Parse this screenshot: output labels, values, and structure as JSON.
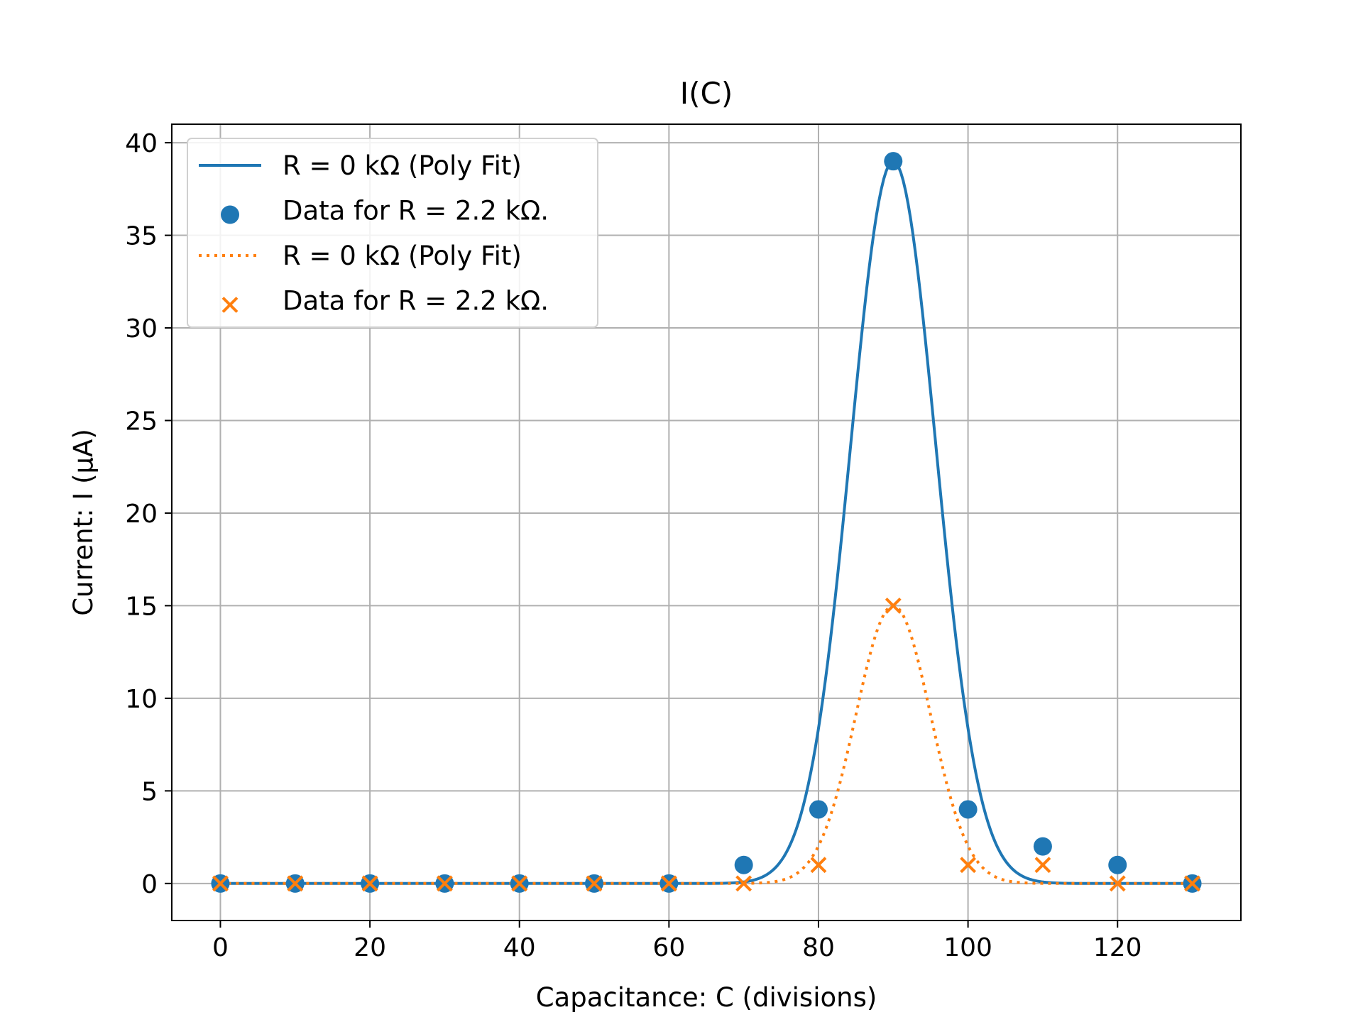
{
  "chart_data": {
    "type": "line",
    "title": "I(C)",
    "xlabel": "Capacitance: C (divisions)",
    "ylabel": "Current: I (µA)",
    "xlim": [
      -6.5,
      136.5
    ],
    "ylim": [
      -2,
      41
    ],
    "xticks": [
      0,
      20,
      40,
      60,
      80,
      100,
      120
    ],
    "yticks": [
      0,
      5,
      10,
      15,
      20,
      25,
      30,
      35,
      40
    ],
    "grid": true,
    "legend_position": "upper-left",
    "series": [
      {
        "name": "R = 0 kΩ (Poly Fit)",
        "kind": "fit-line",
        "style": "solid",
        "color": "#1f77b4",
        "peak_x": 90,
        "peak_y": 39,
        "sigma": 5.7
      },
      {
        "name": "Data for R = 2.2 kΩ.",
        "kind": "scatter",
        "marker": "circle",
        "color": "#1f77b4",
        "x": [
          0,
          10,
          20,
          30,
          40,
          50,
          60,
          70,
          80,
          90,
          100,
          110,
          120,
          130
        ],
        "y": [
          0,
          0,
          0,
          0,
          0,
          0,
          0,
          1,
          4,
          39,
          4,
          2,
          1,
          0
        ]
      },
      {
        "name": "R = 0 kΩ (Poly Fit)",
        "kind": "fit-line",
        "style": "dotted",
        "color": "#ff7f0e",
        "peak_x": 90,
        "peak_y": 15,
        "sigma": 5.0
      },
      {
        "name": "Data for R = 2.2 kΩ.",
        "kind": "scatter",
        "marker": "x",
        "color": "#ff7f0e",
        "x": [
          0,
          10,
          20,
          30,
          40,
          50,
          60,
          70,
          80,
          90,
          100,
          110,
          120,
          130
        ],
        "y": [
          0,
          0,
          0,
          0,
          0,
          0,
          0,
          0,
          1,
          15,
          1,
          1,
          0,
          0
        ]
      }
    ]
  }
}
